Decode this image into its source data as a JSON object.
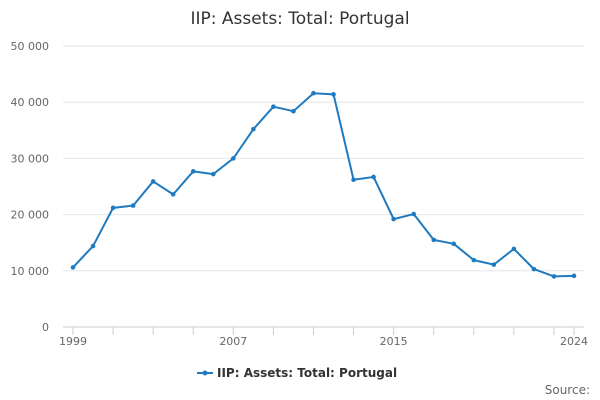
{
  "chart_data": {
    "type": "line",
    "title": "IIP: Assets: Total: Portugal",
    "xlabel": "",
    "ylabel": "",
    "x": [
      1999,
      2000,
      2001,
      2002,
      2003,
      2004,
      2005,
      2006,
      2007,
      2008,
      2009,
      2010,
      2011,
      2012,
      2013,
      2014,
      2015,
      2016,
      2017,
      2018,
      2019,
      2020,
      2021,
      2022,
      2023,
      2024
    ],
    "series": [
      {
        "name": "IIP: Assets: Total: Portugal",
        "color": "#1f7bbf",
        "values": [
          10600,
          14400,
          21200,
          21600,
          25900,
          23600,
          27700,
          27200,
          30000,
          35200,
          39200,
          38400,
          41600,
          41400,
          26200,
          26700,
          19200,
          20100,
          15500,
          14800,
          11900,
          11100,
          13900,
          10300,
          9000,
          9100
        ]
      }
    ],
    "ylim": [
      0,
      50000
    ],
    "y_ticks": [
      0,
      10000,
      20000,
      30000,
      40000,
      50000
    ],
    "y_tick_labels": [
      "0",
      "10 000",
      "20 000",
      "30 000",
      "40 000",
      "50 000"
    ],
    "x_tick_labels": [
      "1999",
      "2007",
      "2015",
      "2024"
    ],
    "x_tick_values": [
      1999,
      2007,
      2015,
      2024
    ],
    "grid": true,
    "legend_position": "bottom-center"
  },
  "footer": {
    "source_label": "Source:"
  }
}
